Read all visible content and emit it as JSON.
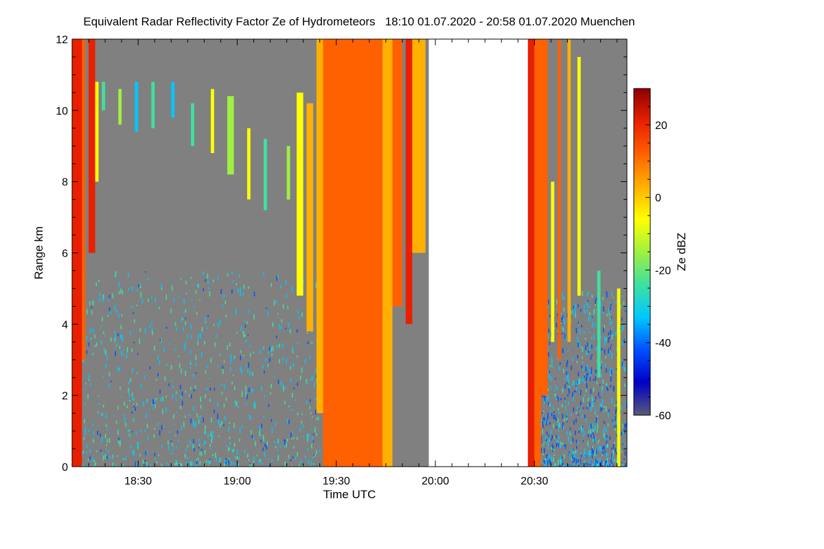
{
  "chart_data": {
    "type": "heatmap",
    "title": "Equivalent Radar Reflectivity Factor Ze of Hydrometeors   18:10 01.07.2020 - 20:58 01.07.2020 Muenchen",
    "xlabel": "Time UTC",
    "ylabel": "Range km",
    "colorbar_label": "Ze dBZ",
    "x_range": [
      "18:10",
      "20:58"
    ],
    "x_ticks": [
      "18:30",
      "19:00",
      "19:30",
      "20:00",
      "20:30"
    ],
    "y_range": [
      0,
      12
    ],
    "y_ticks": [
      "0",
      "2",
      "4",
      "6",
      "8",
      "10",
      "12"
    ],
    "colorbar_range": [
      -60,
      30
    ],
    "colorbar_ticks": [
      "20",
      "0",
      "-20",
      "-40",
      "-60"
    ],
    "background_color": "#808080",
    "data_gap": [
      "19:58",
      "20:28"
    ],
    "colormap": [
      "#5a5a78",
      "#0000c8",
      "#0050ff",
      "#00c8ff",
      "#40e0a0",
      "#a0f040",
      "#ffff00",
      "#ffb000",
      "#ff6000",
      "#e82000",
      "#8b0000"
    ],
    "echo_columns": [
      {
        "t_start": "18:10",
        "t_end": "18:13",
        "h_bottom": 0.0,
        "h_top": 12.0,
        "ze": 18
      },
      {
        "t_start": "18:13",
        "t_end": "18:14",
        "h_bottom": 3.0,
        "h_top": 12.0,
        "ze": 10
      },
      {
        "t_start": "18:15",
        "t_end": "18:17",
        "h_bottom": 6.0,
        "h_top": 12.0,
        "ze": 20
      },
      {
        "t_start": "18:17",
        "t_end": "18:18",
        "h_bottom": 8.0,
        "h_top": 10.8,
        "ze": -5
      },
      {
        "t_start": "18:19",
        "t_end": "18:20",
        "h_bottom": 10.0,
        "h_top": 10.8,
        "ze": -20
      },
      {
        "t_start": "18:24",
        "t_end": "18:25",
        "h_bottom": 9.6,
        "h_top": 10.6,
        "ze": -15
      },
      {
        "t_start": "18:29",
        "t_end": "18:30",
        "h_bottom": 9.4,
        "h_top": 10.8,
        "ze": -30
      },
      {
        "t_start": "18:34",
        "t_end": "18:35",
        "h_bottom": 9.5,
        "h_top": 10.8,
        "ze": -25
      },
      {
        "t_start": "18:40",
        "t_end": "18:41",
        "h_bottom": 9.8,
        "h_top": 10.8,
        "ze": -30
      },
      {
        "t_start": "18:46",
        "t_end": "18:47",
        "h_bottom": 9.0,
        "h_top": 10.2,
        "ze": -20
      },
      {
        "t_start": "18:52",
        "t_end": "18:53",
        "h_bottom": 8.8,
        "h_top": 10.6,
        "ze": -10
      },
      {
        "t_start": "18:57",
        "t_end": "18:59",
        "h_bottom": 8.2,
        "h_top": 10.4,
        "ze": -15
      },
      {
        "t_start": "19:03",
        "t_end": "19:04",
        "h_bottom": 7.5,
        "h_top": 9.5,
        "ze": -10
      },
      {
        "t_start": "19:08",
        "t_end": "19:09",
        "h_bottom": 7.2,
        "h_top": 9.2,
        "ze": -20
      },
      {
        "t_start": "19:15",
        "t_end": "19:16",
        "h_bottom": 7.5,
        "h_top": 9.0,
        "ze": -15
      },
      {
        "t_start": "19:18",
        "t_end": "19:20",
        "h_bottom": 4.8,
        "h_top": 10.5,
        "ze": -5
      },
      {
        "t_start": "19:21",
        "t_end": "19:23",
        "h_bottom": 3.8,
        "h_top": 10.2,
        "ze": 0
      },
      {
        "t_start": "19:24",
        "t_end": "19:26",
        "h_bottom": 1.5,
        "h_top": 12.0,
        "ze": 5
      },
      {
        "t_start": "19:26",
        "t_end": "19:29",
        "h_bottom": 0.0,
        "h_top": 12.0,
        "ze": 12
      },
      {
        "t_start": "19:29",
        "t_end": "19:36",
        "h_bottom": 0.0,
        "h_top": 12.0,
        "ze": 10
      },
      {
        "t_start": "19:36",
        "t_end": "19:44",
        "h_bottom": 0.0,
        "h_top": 12.0,
        "ze": 8
      },
      {
        "t_start": "19:44",
        "t_end": "19:47",
        "h_bottom": 0.0,
        "h_top": 12.0,
        "ze": 2
      },
      {
        "t_start": "19:47",
        "t_end": "19:50",
        "h_bottom": 4.5,
        "h_top": 12.0,
        "ze": 10
      },
      {
        "t_start": "19:51",
        "t_end": "19:53",
        "h_bottom": 4.0,
        "h_top": 12.0,
        "ze": 18
      },
      {
        "t_start": "19:53",
        "t_end": "19:57",
        "h_bottom": 6.0,
        "h_top": 12.0,
        "ze": 5
      },
      {
        "t_start": "20:28",
        "t_end": "20:30",
        "h_bottom": 0.0,
        "h_top": 12.0,
        "ze": 20
      },
      {
        "t_start": "20:30",
        "t_end": "20:32",
        "h_bottom": 0.0,
        "h_top": 12.0,
        "ze": 10
      },
      {
        "t_start": "20:32",
        "t_end": "20:34",
        "h_bottom": 2.0,
        "h_top": 12.0,
        "ze": 15
      },
      {
        "t_start": "20:35",
        "t_end": "20:36",
        "h_bottom": 3.5,
        "h_top": 8.0,
        "ze": -5
      },
      {
        "t_start": "20:37",
        "t_end": "20:38",
        "h_bottom": 3.0,
        "h_top": 12.0,
        "ze": 12
      },
      {
        "t_start": "20:40",
        "t_end": "20:41",
        "h_bottom": 3.5,
        "h_top": 12.0,
        "ze": 0
      },
      {
        "t_start": "20:43",
        "t_end": "20:44",
        "h_bottom": 4.8,
        "h_top": 11.5,
        "ze": -10
      },
      {
        "t_start": "20:49",
        "t_end": "20:50",
        "h_bottom": 2.5,
        "h_top": 5.5,
        "ze": -20
      },
      {
        "t_start": "20:55",
        "t_end": "20:56",
        "h_bottom": 0.0,
        "h_top": 5.0,
        "ze": -5
      }
    ],
    "precipitation_speckle": [
      {
        "t_start": "18:10",
        "t_end": "19:25",
        "h_top": 5.5,
        "ze": -30
      },
      {
        "t_start": "20:30",
        "t_end": "20:58",
        "h_top": 5.0,
        "ze": -35
      }
    ],
    "grid": false
  }
}
